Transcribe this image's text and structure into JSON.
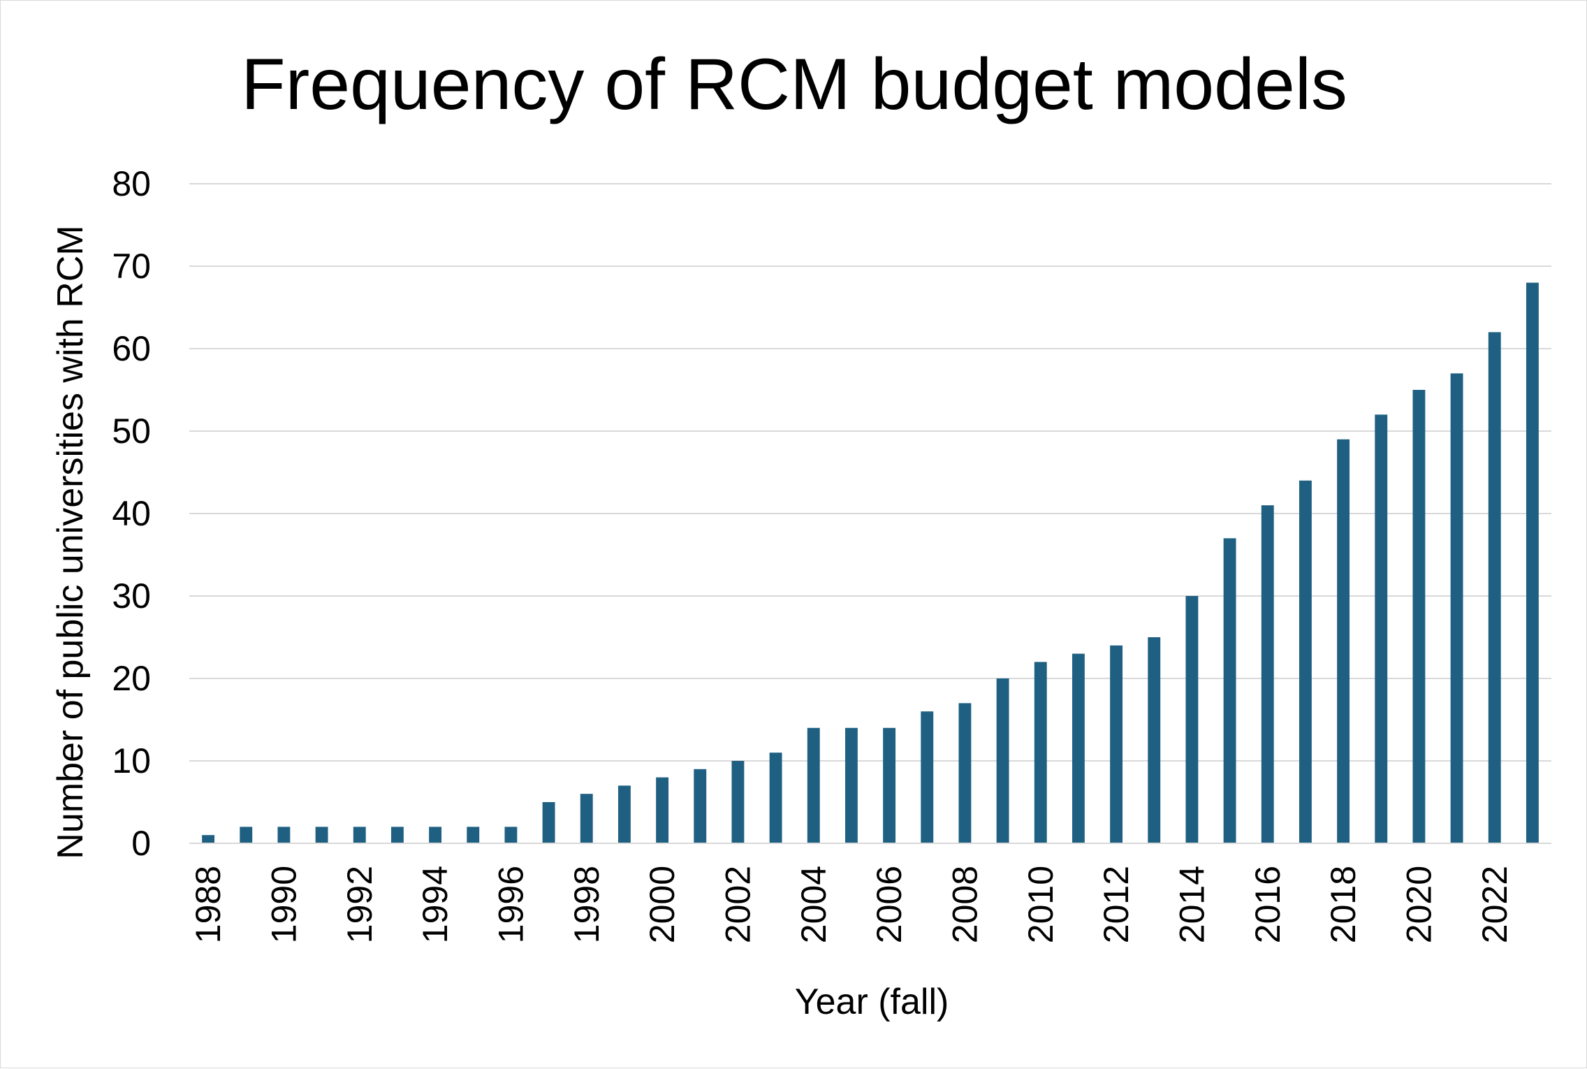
{
  "colors": {
    "bar": "#1f6082",
    "grid": "#d9d9d9",
    "axis": "#d9d9d9",
    "text": "#000000"
  },
  "chart_data": {
    "type": "bar",
    "title": "Frequency of RCM budget models",
    "xlabel": "Year (fall)",
    "ylabel": "Number of public universities with RCM",
    "ylim": [
      0,
      80
    ],
    "yticks": [
      0,
      10,
      20,
      30,
      40,
      50,
      60,
      70,
      80
    ],
    "categories": [
      "1988",
      "1989",
      "1990",
      "1991",
      "1992",
      "1993",
      "1994",
      "1995",
      "1996",
      "1997",
      "1998",
      "1999",
      "2000",
      "2001",
      "2002",
      "2003",
      "2004",
      "2005",
      "2006",
      "2007",
      "2008",
      "2009",
      "2010",
      "2011",
      "2012",
      "2013",
      "2014",
      "2015",
      "2016",
      "2017",
      "2018",
      "2019",
      "2020",
      "2021",
      "2022",
      "2023"
    ],
    "xtick_labels": [
      "1988",
      "1990",
      "1992",
      "1994",
      "1996",
      "1998",
      "2000",
      "2002",
      "2004",
      "2006",
      "2008",
      "2010",
      "2012",
      "2014",
      "2016",
      "2018",
      "2020",
      "2022"
    ],
    "values": [
      1,
      2,
      2,
      2,
      2,
      2,
      2,
      2,
      2,
      5,
      6,
      7,
      8,
      9,
      10,
      11,
      14,
      14,
      14,
      16,
      17,
      20,
      22,
      23,
      24,
      25,
      30,
      37,
      41,
      44,
      49,
      52,
      55,
      57,
      62,
      68
    ],
    "grid": true,
    "legend": "none"
  }
}
